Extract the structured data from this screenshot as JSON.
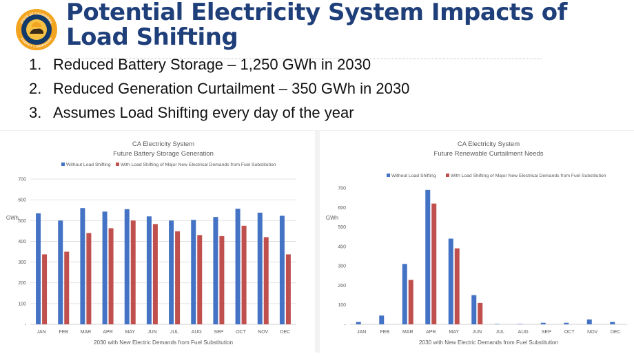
{
  "header": {
    "title_line1": "Potential Electricity System Impacts of",
    "title_line2": "Load Shifting",
    "logo": {
      "icon": "state-seal-icon",
      "text_top": "STATE OF CALIFORNIA",
      "text_bottom": "ENERGY COMMISSION",
      "colors": {
        "ring": "#f3a522",
        "inner": "#123a6b",
        "center": "#f7c244"
      }
    }
  },
  "bullets": [
    {
      "num": "1.",
      "text": "Reduced Battery Storage – 1,250 GWh in 2030"
    },
    {
      "num": "2.",
      "text": "Reduced Generation Curtailment – 350 GWh in 2030"
    },
    {
      "num": "3.",
      "text": "Assumes Load Shifting every day of the year"
    }
  ],
  "colors": {
    "series1": "#4472c4",
    "series2": "#c0504d",
    "title": "#1f3f7a"
  },
  "chart_data": [
    {
      "type": "bar",
      "title": "CA Electricity System",
      "subtitle": "Future Battery Storage Generation",
      "xlabel": "2030 with New Electric Demands from Fuel Substitution",
      "ylabel": "GWh",
      "ylim": [
        0,
        700
      ],
      "yticks": [
        0,
        100,
        200,
        300,
        400,
        500,
        600,
        700
      ],
      "ytick_labels": [
        "-",
        "100",
        "200",
        "300",
        "400",
        "500",
        "600",
        "700"
      ],
      "grid": true,
      "legend_position": "top",
      "categories": [
        "JAN",
        "FEB",
        "MAR",
        "APR",
        "MAY",
        "JUN",
        "JUL",
        "AUG",
        "SEP",
        "OCT",
        "NOV",
        "DEC"
      ],
      "series": [
        {
          "name": "Without Load Shifting",
          "values": [
            535,
            500,
            560,
            543,
            555,
            520,
            500,
            503,
            517,
            557,
            538,
            523
          ]
        },
        {
          "name": "With Load Shifting of Major New Electrical Demands from Fuel Substitution",
          "values": [
            337,
            350,
            440,
            463,
            500,
            483,
            448,
            430,
            425,
            475,
            420,
            337
          ]
        }
      ]
    },
    {
      "type": "bar",
      "title": "CA Electricity System",
      "subtitle": "Future Renewable Curtailment Needs",
      "xlabel": "2030 with New Electric Demands from Fuel Substitution",
      "ylabel": "GWh",
      "ylim": [
        0,
        700
      ],
      "yticks": [
        0,
        100,
        200,
        300,
        400,
        500,
        600,
        700
      ],
      "ytick_labels": [
        "-",
        "100",
        "200",
        "300",
        "400",
        "500",
        "600",
        "700"
      ],
      "grid": false,
      "legend_position": "top",
      "categories": [
        "JAN",
        "FEB",
        "MAR",
        "APR",
        "MAY",
        "JUN",
        "JUL",
        "AUG",
        "SEP",
        "OCT",
        "NOV",
        "DEC"
      ],
      "series": [
        {
          "name": "Without Load Shifting",
          "values": [
            12,
            45,
            310,
            690,
            440,
            150,
            2,
            2,
            8,
            8,
            25,
            12
          ]
        },
        {
          "name": "With Load Shifting of Major New Electrical Demands from Fuel Substitution",
          "values": [
            0,
            0,
            228,
            620,
            390,
            110,
            0,
            0,
            0,
            0,
            0,
            0
          ]
        }
      ]
    }
  ]
}
